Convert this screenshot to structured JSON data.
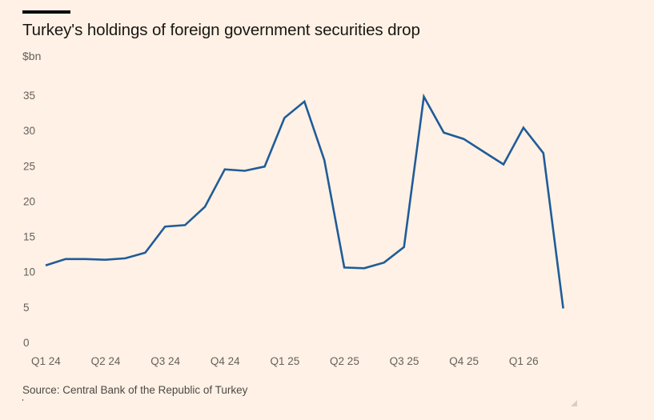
{
  "header": {
    "title": "Turkey's holdings of foreign government securities drop",
    "unit": "$bn"
  },
  "footer": {
    "source": "Source: Central Bank of the Republic of Turkey"
  },
  "colors": {
    "background": "#fff1e5",
    "line": "#1f5c99",
    "text": "#66605c"
  },
  "chart_data": {
    "type": "line",
    "title": "Turkey's holdings of foreign government securities drop",
    "xlabel": "",
    "ylabel": "$bn",
    "ylim": [
      0,
      35
    ],
    "yticks": [
      0,
      5,
      10,
      15,
      20,
      25,
      30,
      35
    ],
    "xtick_labels": [
      "Q1 24",
      "Q2 24",
      "Q3 24",
      "Q4 24",
      "Q1 25",
      "Q2 25",
      "Q3 25",
      "Q4 25",
      "Q1 26"
    ],
    "xtick_positions": [
      0,
      3,
      6,
      9,
      12,
      15,
      18,
      21,
      24
    ],
    "grid": false,
    "legend": "none",
    "x": [
      "2024-01",
      "2024-02",
      "2024-03",
      "2024-04",
      "2024-05",
      "2024-06",
      "2024-07",
      "2024-08",
      "2024-09",
      "2024-10",
      "2024-11",
      "2024-12",
      "2025-01",
      "2025-02",
      "2025-03",
      "2025-04",
      "2025-05",
      "2025-06",
      "2025-07",
      "2025-08",
      "2025-09",
      "2025-10",
      "2025-11",
      "2025-12",
      "2026-01",
      "2026-02",
      "2026-03"
    ],
    "series": [
      {
        "name": "Foreign government securities holdings",
        "values": [
          10.9,
          11.8,
          11.8,
          11.7,
          11.9,
          12.7,
          16.4,
          16.6,
          19.2,
          24.5,
          24.3,
          24.9,
          31.8,
          34.1,
          25.8,
          10.6,
          10.5,
          11.3,
          13.5,
          34.8,
          29.7,
          28.8,
          27.0,
          25.2,
          30.4,
          26.8,
          4.8
        ]
      }
    ]
  }
}
